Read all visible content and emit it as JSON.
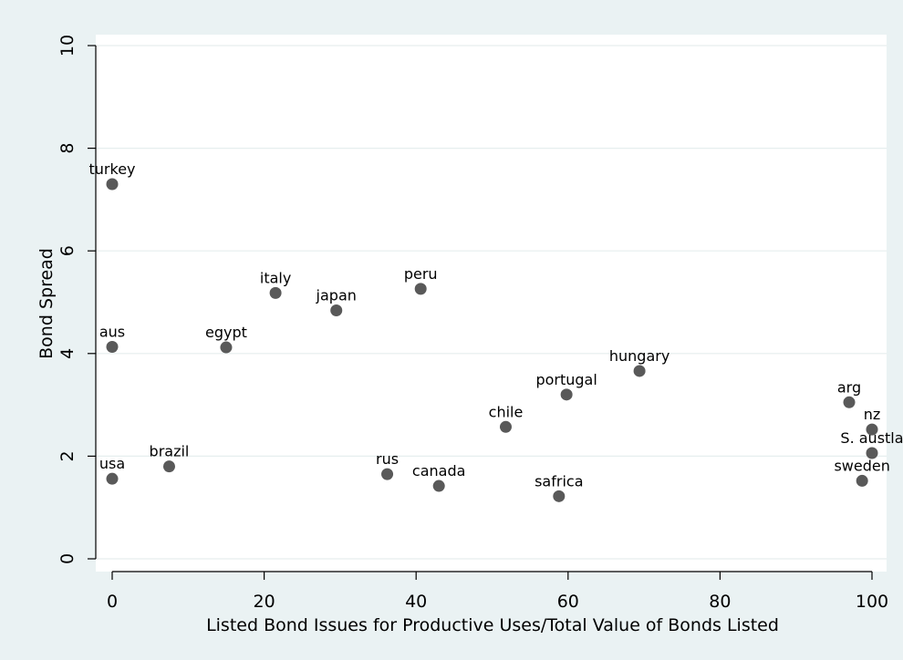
{
  "chart_data": {
    "type": "scatter",
    "title": "",
    "xlabel": "Listed Bond Issues for Productive Uses/Total Value of Bonds Listed",
    "ylabel": "Bond Spread",
    "xlim": [
      -2,
      101
    ],
    "ylim": [
      -0.3,
      10.3
    ],
    "x_ticks": [
      0,
      20,
      40,
      60,
      80,
      100
    ],
    "y_ticks": [
      0,
      2,
      4,
      6,
      8,
      10
    ],
    "x_tick_labels": [
      "0",
      "20",
      "40",
      "60",
      "80",
      "100"
    ],
    "y_tick_labels": [
      "0",
      "2",
      "4",
      "6",
      "8",
      "10"
    ],
    "grid": "horizontal",
    "marker_color": "#595959",
    "plot_background": "#ffffff",
    "figure_background": "#eaf2f3",
    "points": [
      {
        "label": "turkey",
        "x": 0,
        "y": 7.3
      },
      {
        "label": "aus",
        "x": 0,
        "y": 4.13
      },
      {
        "label": "usa",
        "x": 0,
        "y": 1.56
      },
      {
        "label": "brazil",
        "x": 7.5,
        "y": 1.8
      },
      {
        "label": "egypt",
        "x": 15,
        "y": 4.12
      },
      {
        "label": "italy",
        "x": 21.5,
        "y": 5.18
      },
      {
        "label": "japan",
        "x": 29.5,
        "y": 4.84
      },
      {
        "label": "rus",
        "x": 36.2,
        "y": 1.65
      },
      {
        "label": "peru",
        "x": 40.6,
        "y": 5.26
      },
      {
        "label": "canada",
        "x": 43,
        "y": 1.42
      },
      {
        "label": "chile",
        "x": 51.8,
        "y": 2.57
      },
      {
        "label": "safrica",
        "x": 58.8,
        "y": 1.22
      },
      {
        "label": "portugal",
        "x": 59.8,
        "y": 3.2
      },
      {
        "label": "hungary",
        "x": 69.4,
        "y": 3.66
      },
      {
        "label": "arg",
        "x": 97,
        "y": 3.05
      },
      {
        "label": "nz",
        "x": 100,
        "y": 2.52
      },
      {
        "label": "S. austla",
        "x": 100,
        "y": 2.06
      },
      {
        "label": "sweden",
        "x": 98.7,
        "y": 1.52
      }
    ]
  }
}
